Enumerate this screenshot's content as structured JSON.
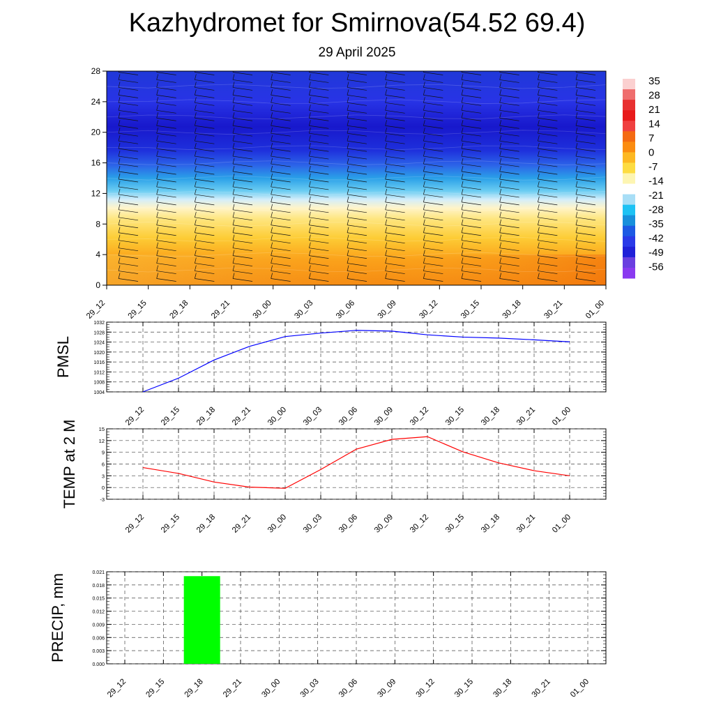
{
  "header": {
    "title": "Kazhydromet for Smirnova(54.52 69.4)",
    "subtitle": "29 April 2025"
  },
  "colors": {
    "pmsl_line": "#0000ff",
    "temp_line": "#ff0000",
    "precip_bar": "#00ff00",
    "grid": "#555555"
  },
  "chart_data": [
    {
      "type": "heatmap",
      "title": "",
      "x": [
        "29_12",
        "29_15",
        "29_18",
        "29_21",
        "30_00",
        "30_03",
        "30_06",
        "30_09",
        "30_12",
        "30_15",
        "30_18",
        "30_21",
        "01_00"
      ],
      "ylabel": "",
      "y_ticks": [
        0,
        4,
        8,
        12,
        16,
        20,
        24,
        28
      ],
      "ylim": [
        0,
        28
      ],
      "overlay": "wind barbs",
      "colorbar": {
        "ticks": [
          35,
          28,
          21,
          14,
          7,
          0,
          -7,
          -14,
          -21,
          -28,
          -35,
          -42,
          -49,
          -56
        ],
        "colors": [
          "#fbd0d0",
          "#ef6e6e",
          "#e83030",
          "#e81a1a",
          "#f04040",
          "#f46a12",
          "#fb8c10",
          "#fdb822",
          "#fddc42",
          "#fdf5b2",
          "#ffffff",
          "#a8def6",
          "#1ec2f4",
          "#1890dc",
          "#1d5ae4",
          "#2a3ae8",
          "#2020d8",
          "#6a3fe0",
          "#8a3af0"
        ]
      },
      "series": [
        {
          "values": [
            [
              8.5,
              10.0,
              10.4,
              10.5,
              10.6,
              10.7,
              10.9,
              11.0,
              11.0,
              11.1,
              11.2,
              11.3,
              11.5
            ]
          ]
        }
      ]
    },
    {
      "type": "line",
      "ylabel": "PMSL",
      "x": [
        "29_12",
        "29_15",
        "29_18",
        "29_21",
        "30_00",
        "30_03",
        "30_06",
        "30_09",
        "30_12",
        "30_15",
        "30_18",
        "30_21",
        "01_00"
      ],
      "ylim": [
        1004,
        1032
      ],
      "y_ticks": [
        1004,
        1008,
        1012,
        1016,
        1020,
        1024,
        1028,
        1032
      ],
      "grid": true,
      "series": [
        {
          "values": [
            1004.0,
            1009.5,
            1016.8,
            1022.3,
            1026.2,
            1027.6,
            1028.7,
            1028.4,
            1026.9,
            1026.0,
            1025.6,
            1024.9,
            1024.1
          ]
        }
      ]
    },
    {
      "type": "line",
      "ylabel": "TEMP at 2 M",
      "x": [
        "29_12",
        "29_15",
        "29_18",
        "29_21",
        "30_00",
        "30_03",
        "30_06",
        "30_09",
        "30_12",
        "30_15",
        "30_18",
        "30_21",
        "01_00"
      ],
      "ylim": [
        -3,
        15
      ],
      "y_ticks": [
        -3,
        0,
        3,
        6,
        9,
        12,
        15
      ],
      "grid": true,
      "series": [
        {
          "values": [
            5.1,
            3.6,
            1.4,
            0.1,
            -0.2,
            4.6,
            9.8,
            12.3,
            13.0,
            9.1,
            6.3,
            4.3,
            3.0
          ]
        }
      ]
    },
    {
      "type": "bar",
      "ylabel": "PRECIP, mm",
      "x": [
        "29_12",
        "29_15",
        "29_18",
        "29_21",
        "30_00",
        "30_03",
        "30_06",
        "30_09",
        "30_12",
        "30_15",
        "30_18",
        "30_21",
        "01_00"
      ],
      "ylim": [
        0,
        0.021
      ],
      "y_ticks": [
        "0.000",
        "0.003",
        "0.006",
        "0.009",
        "0.012",
        "0.015",
        "0.018",
        "0.021"
      ],
      "grid": true,
      "series": [
        {
          "values": [
            0,
            0,
            0.02,
            0,
            0,
            0,
            0,
            0,
            0,
            0,
            0,
            0,
            0
          ]
        }
      ]
    }
  ]
}
